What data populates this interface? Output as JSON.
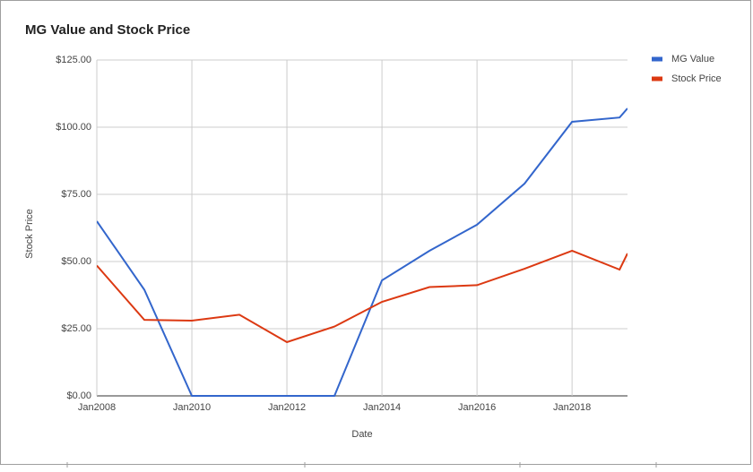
{
  "chart_data": {
    "type": "line",
    "title": "MG Value and Stock Price",
    "x_label": "Date",
    "y_label": "Stock Price",
    "x": [
      "2008-01",
      "2009-01",
      "2010-01",
      "2011-01",
      "2012-01",
      "2013-01",
      "2014-01",
      "2015-01",
      "2016-01",
      "2017-01",
      "2018-01",
      "2019-01",
      "2019-03"
    ],
    "series": [
      {
        "name": "MG Value",
        "color": "#3366cc",
        "values": [
          65,
          39.5,
          0,
          0,
          0,
          0,
          43,
          54,
          63.7,
          79,
          102,
          103.6,
          107
        ]
      },
      {
        "name": "Stock Price",
        "color": "#dc3912",
        "values": [
          48.5,
          28.3,
          28,
          30.2,
          20,
          25.8,
          35,
          40.5,
          41.2,
          47.3,
          54,
          47,
          53
        ]
      }
    ],
    "xlim": [
      "2008-01",
      "2019-03"
    ],
    "xticks": [
      {
        "value": "2008-01",
        "label": "Jan2008"
      },
      {
        "value": "2010-01",
        "label": "Jan2010"
      },
      {
        "value": "2012-01",
        "label": "Jan2012"
      },
      {
        "value": "2014-01",
        "label": "Jan2014"
      },
      {
        "value": "2016-01",
        "label": "Jan2016"
      },
      {
        "value": "2018-01",
        "label": "Jan2018"
      }
    ],
    "ylim": [
      0,
      125
    ],
    "yticks": [
      {
        "value": 0,
        "label": "$0.00"
      },
      {
        "value": 25,
        "label": "$25.00"
      },
      {
        "value": 50,
        "label": "$50.00"
      },
      {
        "value": 75,
        "label": "$75.00"
      },
      {
        "value": 100,
        "label": "$100.00"
      },
      {
        "value": 125,
        "label": "$125.00"
      }
    ],
    "grid": true,
    "legend": "right"
  }
}
